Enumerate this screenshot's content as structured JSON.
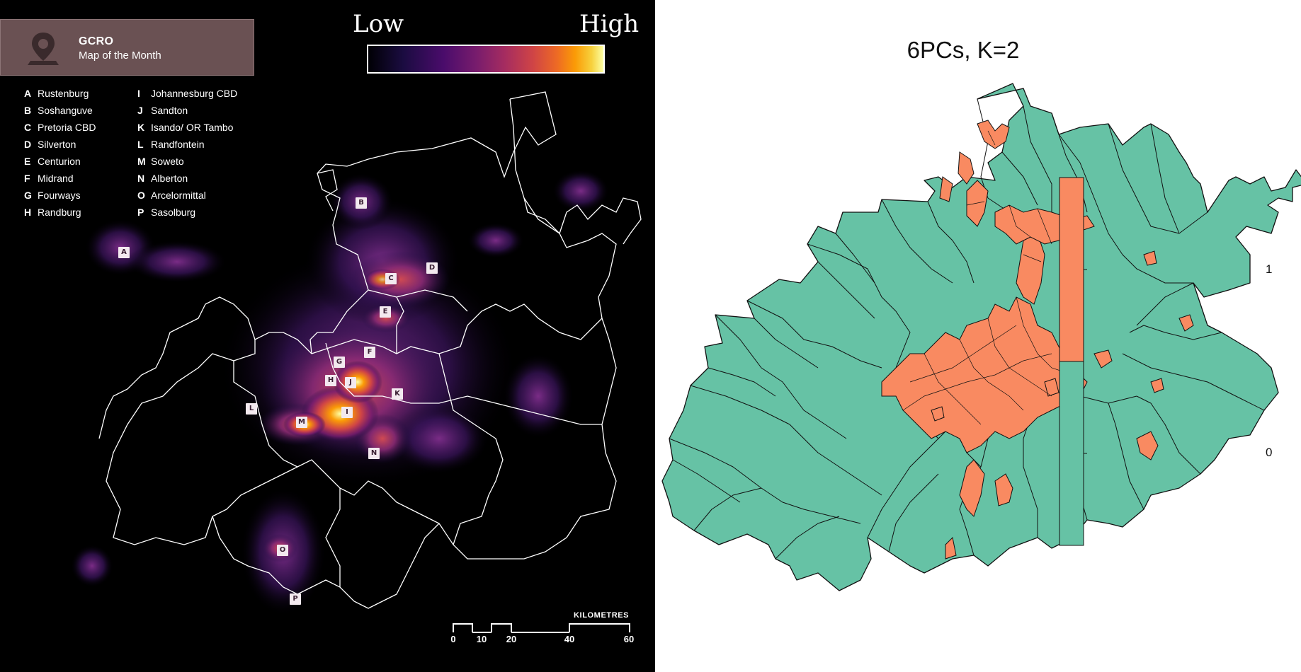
{
  "left_map": {
    "badge": {
      "title": "GCRO",
      "subtitle": "Map of the Month",
      "icon": "map-pin-icon"
    },
    "scale": {
      "low": "Low",
      "high": "High"
    },
    "places": [
      {
        "key": "A",
        "name": "Rustenburg"
      },
      {
        "key": "B",
        "name": "Soshanguve"
      },
      {
        "key": "C",
        "name": "Pretoria CBD"
      },
      {
        "key": "D",
        "name": "Silverton"
      },
      {
        "key": "E",
        "name": "Centurion"
      },
      {
        "key": "F",
        "name": "Midrand"
      },
      {
        "key": "G",
        "name": "Fourways"
      },
      {
        "key": "H",
        "name": "Randburg"
      },
      {
        "key": "I",
        "name": "Johannesburg CBD"
      },
      {
        "key": "J",
        "name": "Sandton"
      },
      {
        "key": "K",
        "name": "Isando/ OR Tambo"
      },
      {
        "key": "L",
        "name": "Randfontein"
      },
      {
        "key": "M",
        "name": "Soweto"
      },
      {
        "key": "N",
        "name": "Alberton"
      },
      {
        "key": "O",
        "name": "Arcelormittal"
      },
      {
        "key": "P",
        "name": "Sasolburg"
      }
    ],
    "scalebar": {
      "title": "KILOMETRES",
      "ticks": [
        "0",
        "10",
        "20",
        "40",
        "60"
      ]
    }
  },
  "right_map": {
    "title": "6PCs, K=2",
    "colorbar": {
      "labels": [
        "1",
        "0"
      ]
    },
    "colors": {
      "class_1": "#f98a61",
      "class_0": "#66c2a5"
    }
  }
}
